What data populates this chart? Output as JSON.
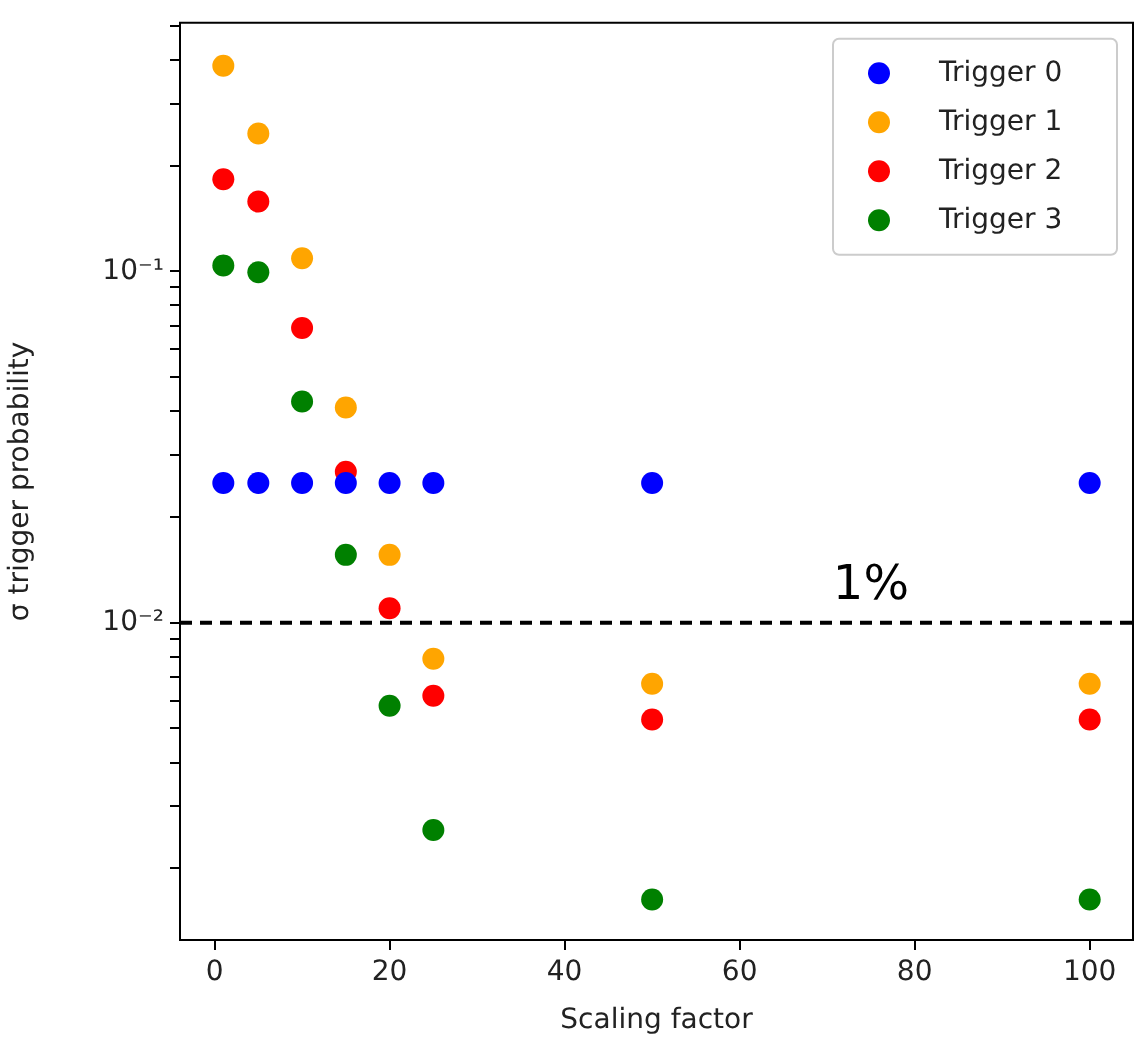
{
  "chart_data": {
    "type": "scatter",
    "xlabel": "Scaling factor",
    "ylabel": "σ trigger probability",
    "x": [
      1,
      5,
      10,
      15,
      20,
      25,
      50,
      100
    ],
    "series": [
      {
        "name": "Trigger 0",
        "color": "#0000ff",
        "values": [
          0.025,
          0.025,
          0.025,
          0.025,
          0.025,
          0.025,
          0.025,
          0.025
        ]
      },
      {
        "name": "Trigger 1",
        "color": "#ffa500",
        "values": [
          0.385,
          0.247,
          0.109,
          0.041,
          0.0156,
          0.0079,
          0.0067,
          0.0067
        ]
      },
      {
        "name": "Trigger 2",
        "color": "#ff0000",
        "values": [
          0.183,
          0.158,
          0.069,
          0.0269,
          0.011,
          0.0062,
          0.0053,
          0.0053
        ]
      },
      {
        "name": "Trigger 3",
        "color": "#008000",
        "values": [
          0.104,
          0.0995,
          0.0426,
          0.0156,
          0.0058,
          0.00257,
          0.00163,
          0.00163
        ]
      }
    ],
    "log": "y",
    "xlim": [
      -3.95,
      104.95
    ],
    "xticks": [
      0,
      20,
      40,
      60,
      80,
      100
    ],
    "ylim": [
      0.00125,
      0.51
    ],
    "yticks": [
      {
        "value": 0.002,
        "label": null
      },
      {
        "value": 0.003,
        "label": null
      },
      {
        "value": 0.004,
        "label": null
      },
      {
        "value": 0.005,
        "label": null
      },
      {
        "value": 0.006,
        "label": null
      },
      {
        "value": 0.007,
        "label": null
      },
      {
        "value": 0.008,
        "label": null
      },
      {
        "value": 0.009,
        "label": null
      },
      {
        "value": 0.01,
        "label": "10⁻²"
      },
      {
        "value": 0.02,
        "label": null
      },
      {
        "value": 0.03,
        "label": null
      },
      {
        "value": 0.04,
        "label": null
      },
      {
        "value": 0.05,
        "label": null
      },
      {
        "value": 0.06,
        "label": null
      },
      {
        "value": 0.07,
        "label": null
      },
      {
        "value": 0.08,
        "label": null
      },
      {
        "value": 0.09,
        "label": null
      },
      {
        "value": 0.1,
        "label": "10⁻¹"
      },
      {
        "value": 0.2,
        "label": null
      },
      {
        "value": 0.3,
        "label": null
      },
      {
        "value": 0.4,
        "label": null
      },
      {
        "value": 0.5,
        "label": null
      }
    ],
    "ref_lines": [
      {
        "axis": "y",
        "value": 0.01,
        "color": "#000000",
        "line_style": "dashed",
        "label": "1%"
      }
    ],
    "marker": "circle",
    "legend": "top right",
    "grid": false
  }
}
